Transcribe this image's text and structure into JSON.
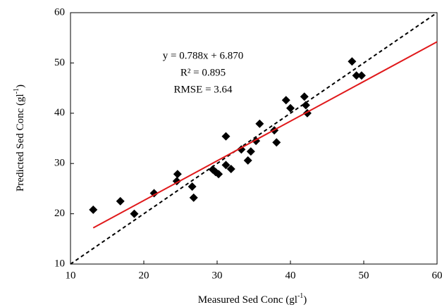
{
  "chart_data": {
    "type": "scatter",
    "x_label": {
      "text": "Measured Sed Conc (gl",
      "sup": "-1",
      "end": ")"
    },
    "y_label": {
      "text": "Predicted Sed Conc (gl",
      "sup": "-1",
      "end": ")"
    },
    "annotations": [
      "y = 0.788x + 6.870",
      "R² = 0.895",
      "RMSE = 3.64"
    ],
    "xlim": [
      10,
      60
    ],
    "ylim": [
      10,
      60
    ],
    "xticks": [
      10,
      20,
      30,
      40,
      50,
      60
    ],
    "yticks": [
      10,
      20,
      30,
      40,
      50,
      60
    ],
    "grid": false,
    "marker": "diamond",
    "color": "#000000",
    "x": [
      13.1,
      16.8,
      18.7,
      21.4,
      24.6,
      24.5,
      26.6,
      26.8,
      29.4,
      29.8,
      30.2,
      31.2,
      31.2,
      31.9,
      33.3,
      34.2,
      34.6,
      35.3,
      35.8,
      37.8,
      38.1,
      39.4,
      40.0,
      41.9,
      42.1,
      42.3,
      48.4,
      49.0,
      49.7
    ],
    "values": [
      20.8,
      22.5,
      20.0,
      24.1,
      27.9,
      26.5,
      25.4,
      23.2,
      28.8,
      28.3,
      27.9,
      35.4,
      29.7,
      28.9,
      32.8,
      30.6,
      32.4,
      34.5,
      37.9,
      36.6,
      34.2,
      42.6,
      41.0,
      43.3,
      41.6,
      40.0,
      50.3,
      47.5,
      47.5
    ],
    "lines": [
      {
        "x": [
          10,
          60
        ],
        "values": [
          10,
          60
        ],
        "color": "#000000",
        "dashed": true
      },
      {
        "x": [
          13.1,
          60
        ],
        "values": [
          17.2,
          54.2
        ],
        "color": "#e0191b",
        "dashed": false
      }
    ]
  }
}
